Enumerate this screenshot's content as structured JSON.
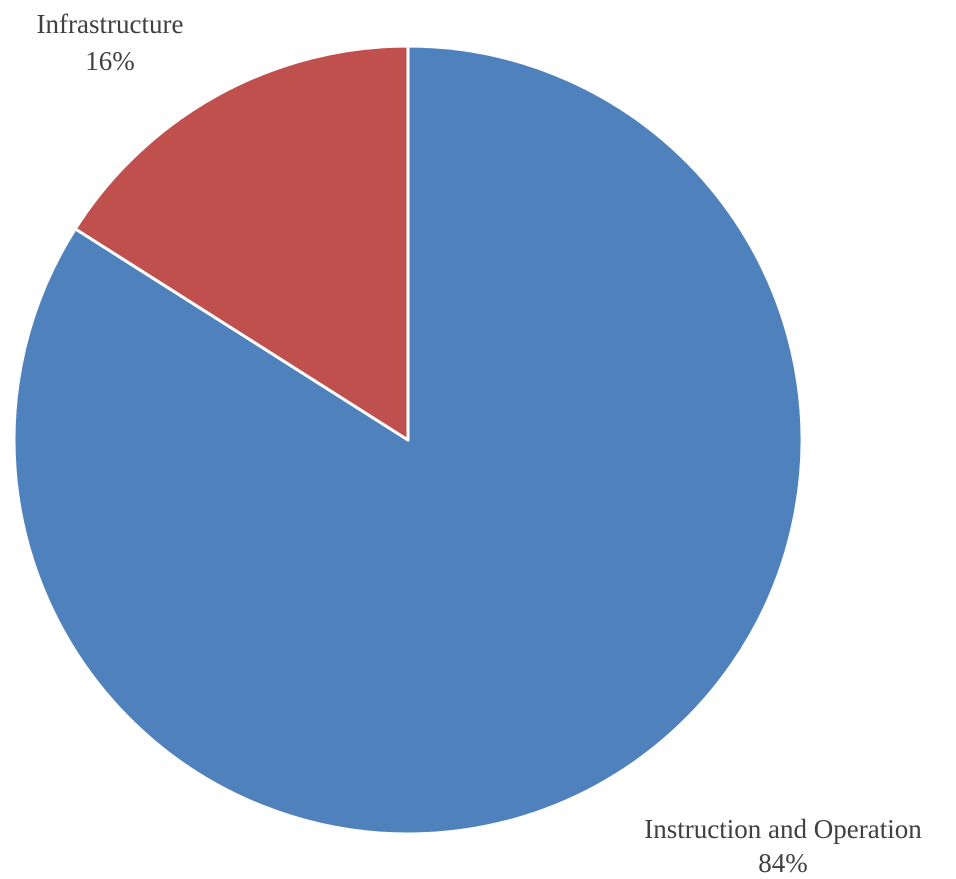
{
  "chart_data": {
    "type": "pie",
    "title": "",
    "slices": [
      {
        "label": "Instruction and Operation",
        "value": 84,
        "value_label": "84%",
        "color": "#4F81BD"
      },
      {
        "label": "Infrastructure",
        "value": 16,
        "value_label": "16%",
        "color": "#C0504D"
      }
    ],
    "start": "12 o'clock",
    "direction": "clockwise",
    "legend": "none",
    "data_labels": "outside"
  }
}
